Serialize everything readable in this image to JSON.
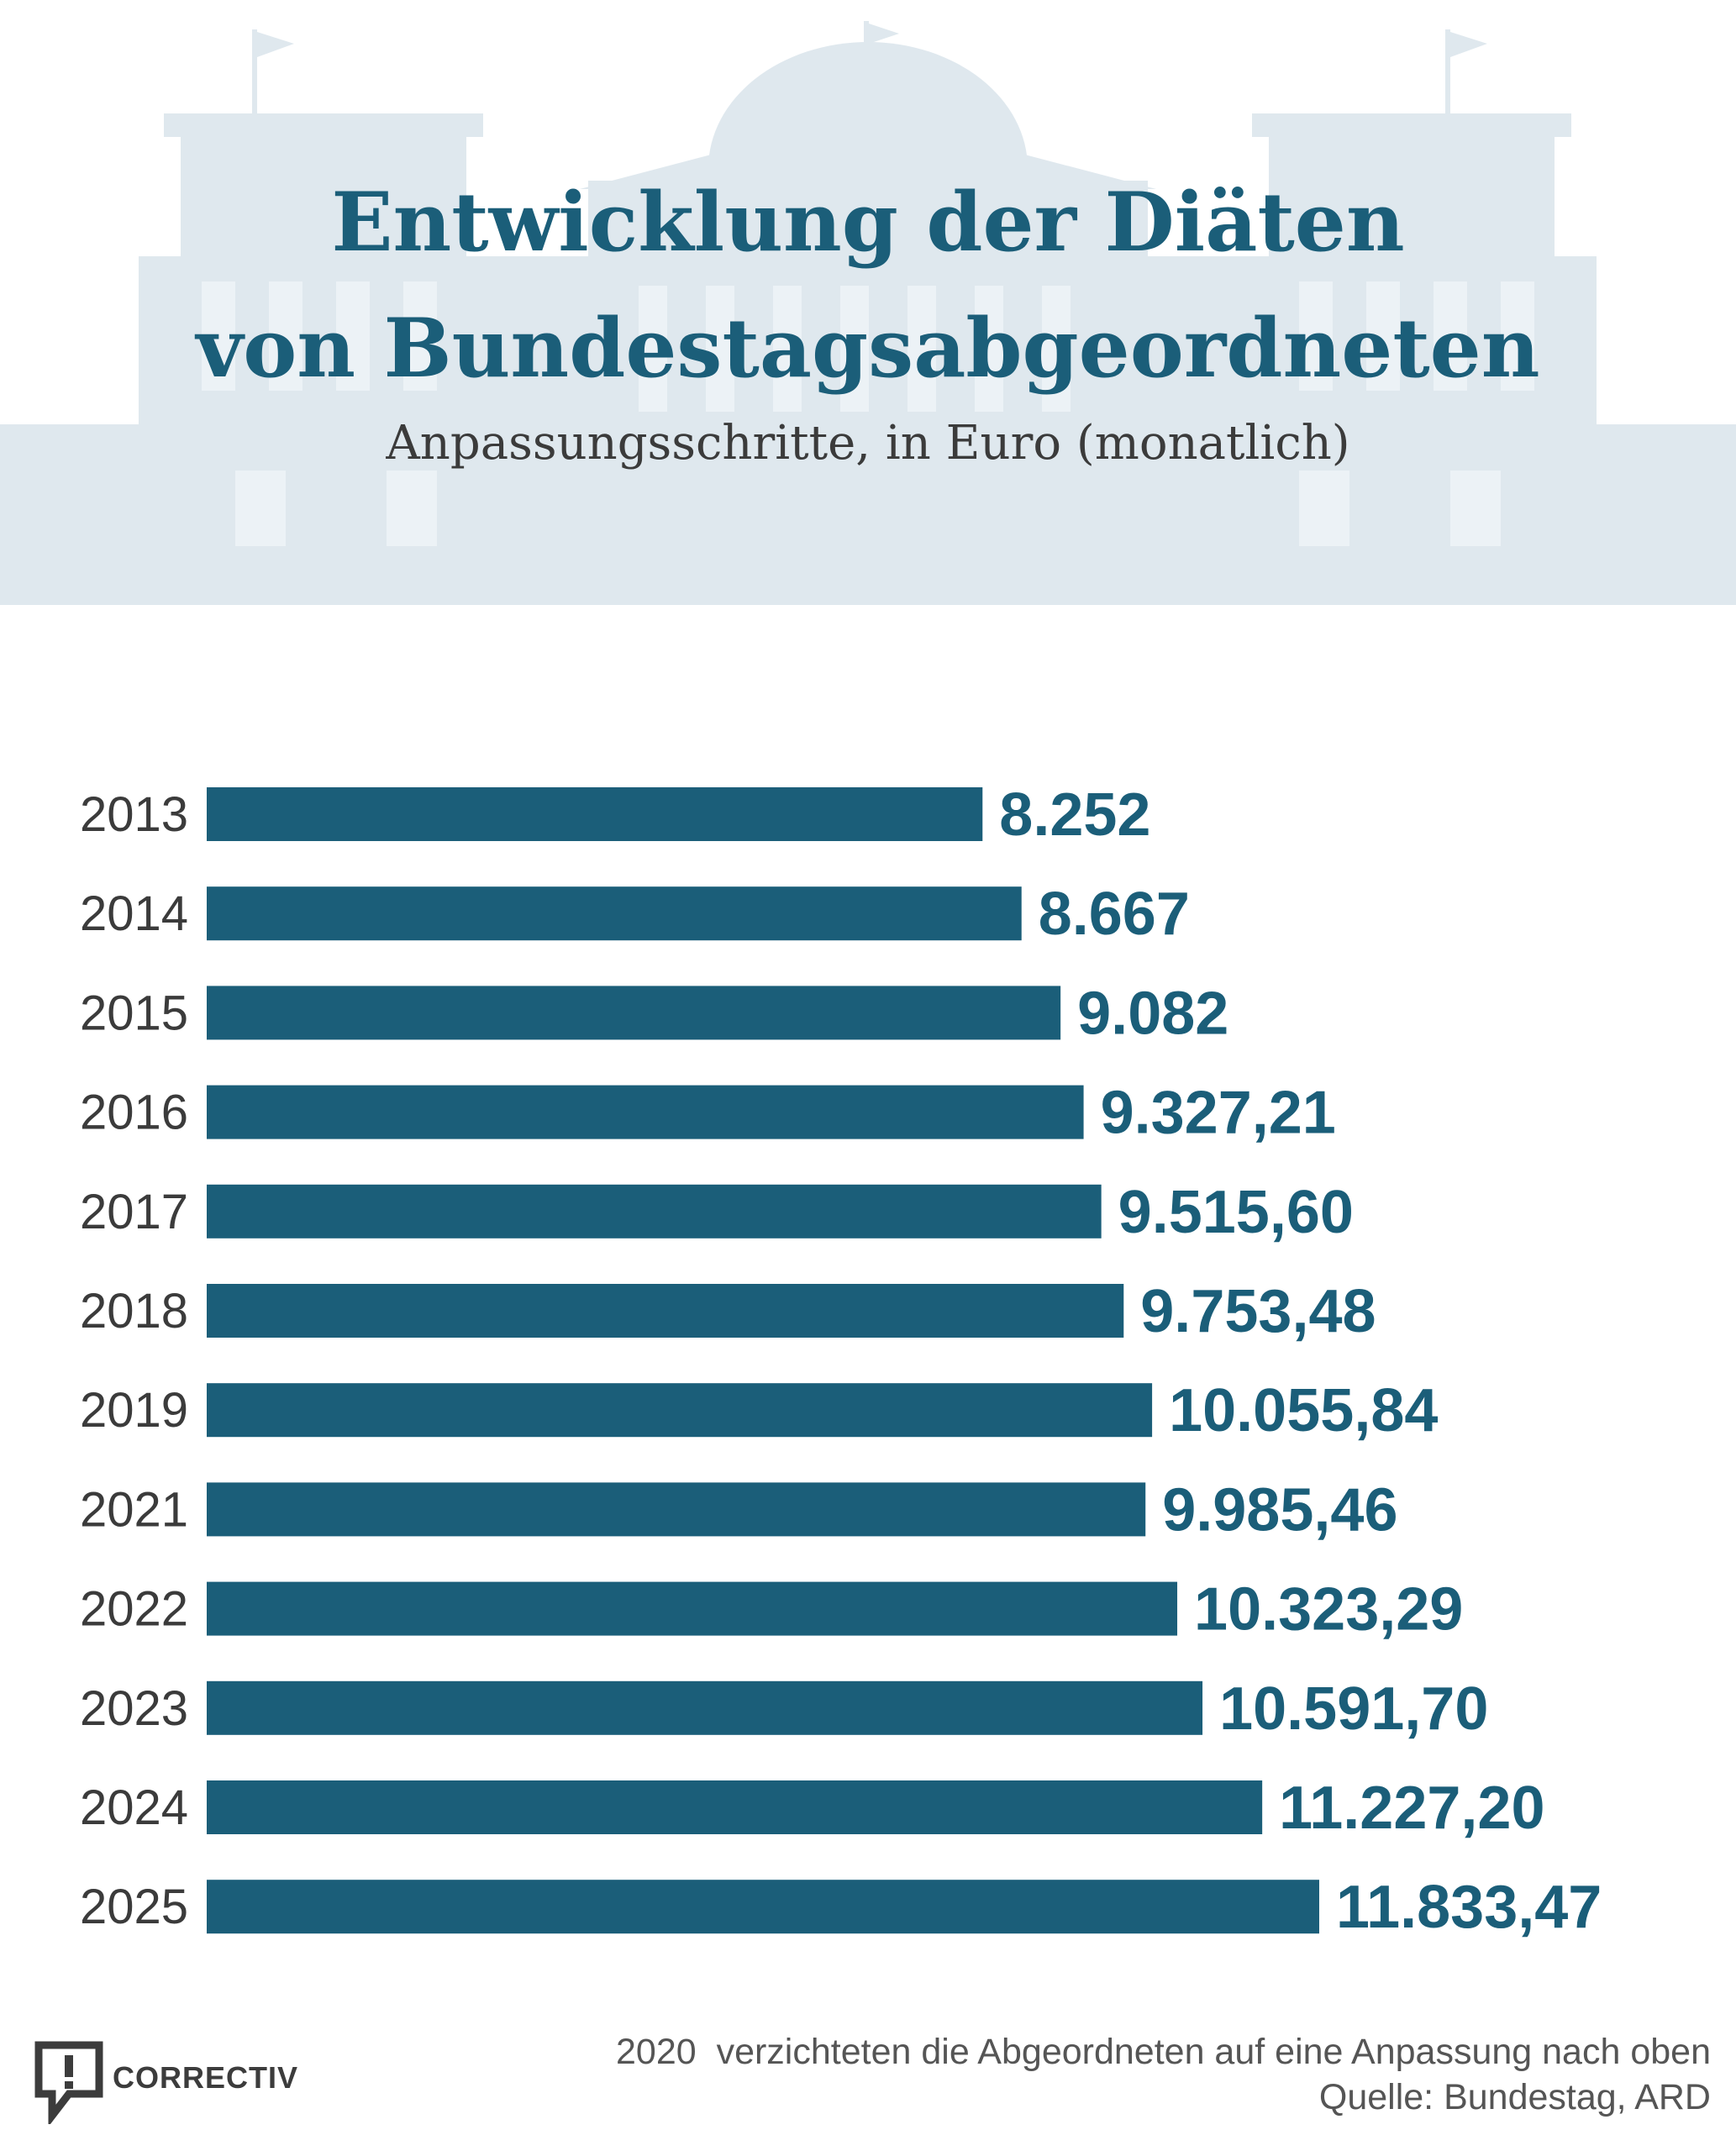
{
  "header": {
    "title_line1": "Entwicklung der Diäten",
    "title_line2": "von Bundestagsabgeordneten",
    "subtitle": "Anpassungsschritte, in Euro (monatlich)"
  },
  "footer": {
    "note": "2020  verzichteten die Abgeordneten auf eine Anpassung nach oben",
    "source": "Quelle: Bundestag, ARD",
    "logo_text": "CORRECTIV"
  },
  "colors": {
    "bar": "#1b5e79",
    "value_label": "#1b5e79",
    "category_label": "#3b3b3b",
    "background_illustration": "#dfe8ee"
  },
  "icons": {
    "background": "reichstag-building-illustration",
    "logo": "speech-bubble-exclamation-icon"
  },
  "chart_data": {
    "type": "bar",
    "orientation": "horizontal",
    "title": "Entwicklung der Diäten von Bundestagsabgeordneten",
    "subtitle": "Anpassungsschritte, in Euro (monatlich)",
    "categories": [
      "2013",
      "2014",
      "2015",
      "2016",
      "2017",
      "2018",
      "2019",
      "2021",
      "2022",
      "2023",
      "2024",
      "2025"
    ],
    "values": [
      8252,
      8667,
      9082,
      9327.21,
      9515.6,
      9753.48,
      10055.84,
      9985.46,
      10323.29,
      10591.7,
      11227.2,
      11833.47
    ],
    "value_labels": [
      "8.252",
      "8.667",
      "9.082",
      "9.327,21",
      "9.515,60",
      "9.753,48",
      "10.055,84",
      "9.985,46",
      "10.323,29",
      "10.591,70",
      "11.227,20",
      "11.833,47"
    ],
    "xlim": [
      0,
      11833.47
    ],
    "grid": false,
    "legend": "none"
  }
}
